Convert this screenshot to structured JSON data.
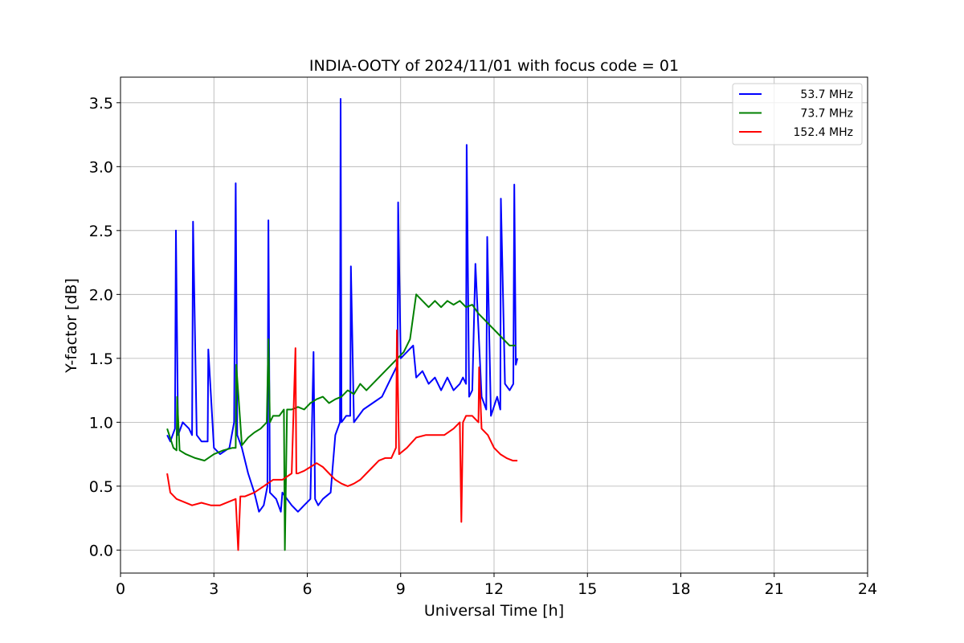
{
  "chart_data": {
    "type": "line",
    "title": "INDIA-OOTY of 2024/11/01 with focus code = 01",
    "xlabel": "Universal Time [h]",
    "ylabel": "Y-factor [dB]",
    "xlim": [
      0,
      24
    ],
    "ylim": [
      -0.18,
      3.7
    ],
    "xticks": [
      0,
      3,
      6,
      9,
      12,
      15,
      18,
      21,
      24
    ],
    "xtick_labels": [
      "0",
      "3",
      "6",
      "9",
      "12",
      "15",
      "18",
      "21",
      "24"
    ],
    "yticks": [
      0.0,
      0.5,
      1.0,
      1.5,
      2.0,
      2.5,
      3.0,
      3.5
    ],
    "ytick_labels": [
      "0.0",
      "0.5",
      "1.0",
      "1.5",
      "2.0",
      "2.5",
      "3.0",
      "3.5"
    ],
    "grid": true,
    "legend_position": "top-right",
    "series": [
      {
        "name": "53.7 MHz",
        "color": "#0000ff",
        "x": [
          1.5,
          1.6,
          1.75,
          1.78,
          1.85,
          2.0,
          2.2,
          2.3,
          2.33,
          2.45,
          2.6,
          2.8,
          2.82,
          3.0,
          3.2,
          3.5,
          3.65,
          3.7,
          3.75,
          3.9,
          4.1,
          4.3,
          4.45,
          4.6,
          4.72,
          4.75,
          4.8,
          5.0,
          5.15,
          5.2,
          5.35,
          5.5,
          5.7,
          5.9,
          6.1,
          6.2,
          6.25,
          6.35,
          6.5,
          6.75,
          6.8,
          6.9,
          7.05,
          7.07,
          7.1,
          7.25,
          7.38,
          7.4,
          7.5,
          7.8,
          8.1,
          8.4,
          8.7,
          8.9,
          8.92,
          9.0,
          9.2,
          9.4,
          9.5,
          9.7,
          9.9,
          10.1,
          10.3,
          10.5,
          10.7,
          10.9,
          11.0,
          11.1,
          11.12,
          11.2,
          11.3,
          11.4,
          11.6,
          11.75,
          11.78,
          11.9,
          12.1,
          12.2,
          12.22,
          12.35,
          12.5,
          12.62,
          12.65,
          12.7,
          12.75
        ],
        "y": [
          0.9,
          0.85,
          0.95,
          2.5,
          0.9,
          1.0,
          0.95,
          0.9,
          2.57,
          0.9,
          0.85,
          0.85,
          1.57,
          0.8,
          0.75,
          0.8,
          1.0,
          2.87,
          0.9,
          0.8,
          0.6,
          0.45,
          0.3,
          0.35,
          0.5,
          2.58,
          0.45,
          0.4,
          0.3,
          0.45,
          0.4,
          0.35,
          0.3,
          0.35,
          0.4,
          1.55,
          0.4,
          0.35,
          0.4,
          0.45,
          0.6,
          0.9,
          1.0,
          3.53,
          1.0,
          1.05,
          1.05,
          2.22,
          1.0,
          1.1,
          1.15,
          1.2,
          1.35,
          1.45,
          2.72,
          1.5,
          1.55,
          1.6,
          1.35,
          1.4,
          1.3,
          1.35,
          1.25,
          1.35,
          1.25,
          1.3,
          1.35,
          1.3,
          3.17,
          1.2,
          1.25,
          2.24,
          1.2,
          1.1,
          2.45,
          1.05,
          1.2,
          1.1,
          2.75,
          1.3,
          1.25,
          1.3,
          2.86,
          1.45,
          1.5
        ]
      },
      {
        "name": "73.7 MHz",
        "color": "#008000",
        "x": [
          1.5,
          1.7,
          1.8,
          1.82,
          1.9,
          2.1,
          2.4,
          2.7,
          3.0,
          3.3,
          3.6,
          3.7,
          3.72,
          3.9,
          4.1,
          4.3,
          4.5,
          4.7,
          4.75,
          4.8,
          4.9,
          5.1,
          5.25,
          5.28,
          5.35,
          5.5,
          5.7,
          5.9,
          6.1,
          6.3,
          6.5,
          6.7,
          6.9,
          7.1,
          7.3,
          7.5,
          7.7,
          7.9,
          8.1,
          8.3,
          8.5,
          8.7,
          8.9,
          9.1,
          9.3,
          9.5,
          9.7,
          9.9,
          10.1,
          10.3,
          10.5,
          10.7,
          10.9,
          11.1,
          11.3,
          11.5,
          11.7,
          11.9,
          12.1,
          12.3,
          12.5,
          12.7
        ],
        "y": [
          0.95,
          0.8,
          0.78,
          1.2,
          0.78,
          0.75,
          0.72,
          0.7,
          0.75,
          0.78,
          0.8,
          0.8,
          1.45,
          0.82,
          0.88,
          0.92,
          0.95,
          1.0,
          1.65,
          1.0,
          1.05,
          1.05,
          1.1,
          0.0,
          1.1,
          1.1,
          1.12,
          1.1,
          1.15,
          1.18,
          1.2,
          1.15,
          1.18,
          1.2,
          1.25,
          1.22,
          1.3,
          1.25,
          1.3,
          1.35,
          1.4,
          1.45,
          1.5,
          1.55,
          1.65,
          2.0,
          1.95,
          1.9,
          1.95,
          1.9,
          1.95,
          1.92,
          1.95,
          1.9,
          1.92,
          1.85,
          1.8,
          1.75,
          1.7,
          1.65,
          1.6,
          1.6
        ]
      },
      {
        "name": "152.4 MHz",
        "color": "#ff0000",
        "x": [
          1.5,
          1.6,
          1.8,
          2.0,
          2.3,
          2.6,
          2.9,
          3.2,
          3.5,
          3.7,
          3.78,
          3.85,
          4.0,
          4.3,
          4.6,
          4.9,
          5.2,
          5.5,
          5.62,
          5.65,
          5.7,
          5.9,
          6.1,
          6.3,
          6.5,
          6.7,
          6.9,
          7.1,
          7.3,
          7.5,
          7.7,
          7.9,
          8.1,
          8.3,
          8.5,
          8.7,
          8.85,
          8.88,
          8.95,
          9.2,
          9.5,
          9.8,
          10.1,
          10.4,
          10.7,
          10.9,
          10.95,
          11.0,
          11.1,
          11.3,
          11.5,
          11.52,
          11.6,
          11.8,
          12.0,
          12.2,
          12.4,
          12.6,
          12.75
        ],
        "y": [
          0.6,
          0.45,
          0.4,
          0.38,
          0.35,
          0.37,
          0.35,
          0.35,
          0.38,
          0.4,
          0.0,
          0.42,
          0.42,
          0.45,
          0.5,
          0.55,
          0.55,
          0.6,
          1.58,
          0.6,
          0.6,
          0.62,
          0.65,
          0.68,
          0.65,
          0.6,
          0.55,
          0.52,
          0.5,
          0.52,
          0.55,
          0.6,
          0.65,
          0.7,
          0.72,
          0.72,
          0.8,
          1.72,
          0.75,
          0.8,
          0.88,
          0.9,
          0.9,
          0.9,
          0.95,
          1.0,
          0.22,
          1.0,
          1.05,
          1.05,
          1.0,
          1.43,
          0.95,
          0.9,
          0.8,
          0.75,
          0.72,
          0.7,
          0.7
        ]
      }
    ]
  }
}
